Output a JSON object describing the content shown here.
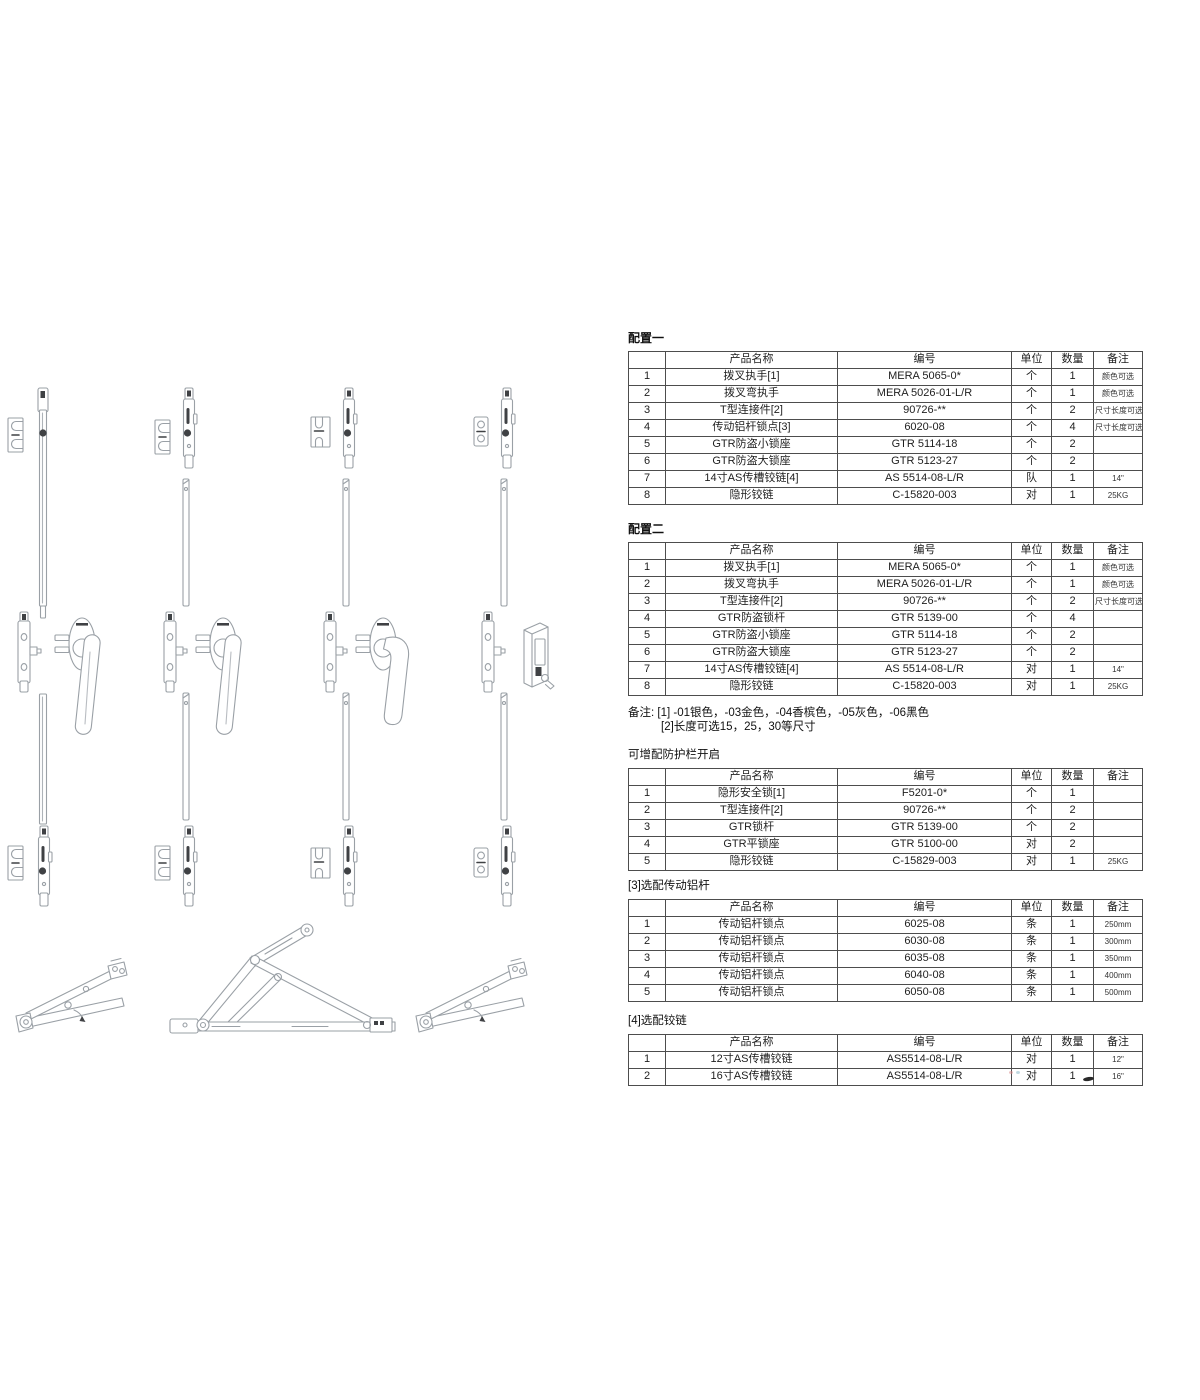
{
  "colors": {
    "table_border": "#4d4d4d",
    "drawing_line": "#9aa0a6",
    "drawing_dark": "#3f4144"
  },
  "notes": {
    "prefix": "备注:",
    "items": [
      "[1] -01银色，-03金色，-04香槟色，-05灰色，-06黑色",
      "[2]长度可选15，25，30等尺寸"
    ]
  },
  "tables": [
    {
      "title": "配置一",
      "headers": [
        "",
        "产品名称",
        "编号",
        "单位",
        "数量",
        "备注"
      ],
      "rows": [
        [
          "1",
          "拨叉执手[1]",
          "MERA 5065-0*",
          "个",
          "1",
          "颜色可选"
        ],
        [
          "2",
          "拨叉弯执手",
          "MERA 5026-01-L/R",
          "个",
          "1",
          "颜色可选"
        ],
        [
          "3",
          "T型连接件[2]",
          "90726-**",
          "个",
          "2",
          "尺寸长度可选"
        ],
        [
          "4",
          "传动铝杆锁点[3]",
          "6020-08",
          "个",
          "4",
          "尺寸长度可选"
        ],
        [
          "5",
          "GTR防盗小锁座",
          "GTR 5114-18",
          "个",
          "2",
          ""
        ],
        [
          "6",
          "GTR防盗大锁座",
          "GTR 5123-27",
          "个",
          "2",
          ""
        ],
        [
          "7",
          "14寸AS传槽铰链[4]",
          "AS 5514-08-L/R",
          "队",
          "1",
          "14\""
        ],
        [
          "8",
          "隐形铰链",
          "C-15820-003",
          "对",
          "1",
          "25KG"
        ]
      ]
    },
    {
      "title": "配置二",
      "headers": [
        "",
        "产品名称",
        "编号",
        "单位",
        "数量",
        "备注"
      ],
      "rows": [
        [
          "1",
          "拨叉执手[1]",
          "MERA 5065-0*",
          "个",
          "1",
          "颜色可选"
        ],
        [
          "2",
          "拨叉弯执手",
          "MERA 5026-01-L/R",
          "个",
          "1",
          "颜色可选"
        ],
        [
          "3",
          "T型连接件[2]",
          "90726-**",
          "个",
          "2",
          "尺寸长度可选"
        ],
        [
          "4",
          "GTR防盗锁杆",
          "GTR 5139-00",
          "个",
          "4",
          ""
        ],
        [
          "5",
          "GTR防盗小锁座",
          "GTR 5114-18",
          "个",
          "2",
          ""
        ],
        [
          "6",
          "GTR防盗大锁座",
          "GTR 5123-27",
          "个",
          "2",
          ""
        ],
        [
          "7",
          "14寸AS传槽铰链[4]",
          "AS 5514-08-L/R",
          "对",
          "1",
          "14\""
        ],
        [
          "8",
          "隐形铰链",
          "C-15820-003",
          "对",
          "1",
          "25KG"
        ]
      ]
    },
    {
      "title": "可增配防护栏开启",
      "headers": [
        "",
        "产品名称",
        "编号",
        "单位",
        "数量",
        "备注"
      ],
      "rows": [
        [
          "1",
          "隐形安全锁[1]",
          "F5201-0*",
          "个",
          "1",
          ""
        ],
        [
          "2",
          "T型连接件[2]",
          "90726-**",
          "个",
          "2",
          ""
        ],
        [
          "3",
          "GTR锁杆",
          "GTR 5139-00",
          "个",
          "2",
          ""
        ],
        [
          "4",
          "GTR平锁座",
          "GTR 5100-00",
          "对",
          "2",
          ""
        ],
        [
          "5",
          "隐形铰链",
          "C-15829-003",
          "对",
          "1",
          "25KG"
        ]
      ]
    },
    {
      "title": "[3]选配传动铝杆",
      "headers": [
        "",
        "产品名称",
        "编号",
        "单位",
        "数量",
        "备注"
      ],
      "rows": [
        [
          "1",
          "传动铝杆锁点",
          "6025-08",
          "条",
          "1",
          "250mm"
        ],
        [
          "2",
          "传动铝杆锁点",
          "6030-08",
          "条",
          "1",
          "300mm"
        ],
        [
          "3",
          "传动铝杆锁点",
          "6035-08",
          "条",
          "1",
          "350mm"
        ],
        [
          "4",
          "传动铝杆锁点",
          "6040-08",
          "条",
          "1",
          "400mm"
        ],
        [
          "5",
          "传动铝杆锁点",
          "6050-08",
          "条",
          "1",
          "500mm"
        ]
      ]
    },
    {
      "title": "[4]选配铰链",
      "headers": [
        "",
        "产品名称",
        "编号",
        "单位",
        "数量",
        "备注"
      ],
      "rows": [
        [
          "1",
          "12寸AS传槽铰链",
          "AS5514-08-L/R",
          "对",
          "1",
          "12\""
        ],
        [
          "2",
          "16寸AS传槽铰链",
          "AS5514-08-L/R",
          "对",
          "1",
          "16\""
        ]
      ]
    }
  ],
  "figures": [
    "espagnolette-lock-column-1",
    "espagnolette-lock-column-2",
    "espagnolette-lock-column-3",
    "espagnolette-lock-column-4",
    "friction-stay-hinge-left",
    "friction-stay-hinge-open",
    "friction-stay-hinge-right",
    "print-artifact-marks"
  ]
}
